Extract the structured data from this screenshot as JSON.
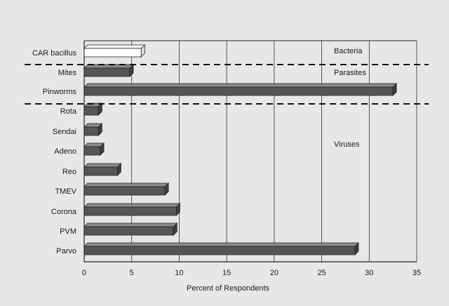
{
  "chart_data": {
    "type": "bar",
    "orientation": "horizontal",
    "title": "",
    "xlabel": "Percent of Respondents",
    "ylabel": "",
    "xlim": [
      0,
      35
    ],
    "xticks": [
      "0",
      "5",
      "10",
      "15",
      "20",
      "25",
      "30",
      "35"
    ],
    "grid": "vertical lines at each 5",
    "categories": [
      "CAR bacillus",
      "Mites",
      "Pinworms",
      "Rota",
      "Sendai",
      "Adeno",
      "Reo",
      "TMEV",
      "Corona",
      "PVM",
      "Parvo"
    ],
    "values": [
      6,
      4.8,
      32.5,
      1.5,
      1.5,
      1.7,
      3.5,
      8.5,
      9.7,
      9.4,
      28.5
    ],
    "groups": [
      {
        "label": "Bacteria",
        "categories": [
          "CAR bacillus"
        ]
      },
      {
        "label": "Parasites",
        "categories": [
          "Mites",
          "Pinworms"
        ]
      },
      {
        "label": "Viruses",
        "categories": [
          "Rota",
          "Sendai",
          "Adeno",
          "Reo",
          "TMEV",
          "Corona",
          "PVM",
          "Parvo"
        ]
      }
    ],
    "colors": {
      "bar": "#555555",
      "bar_highlight": "#ffffff",
      "background": "#e7e7e7"
    }
  }
}
